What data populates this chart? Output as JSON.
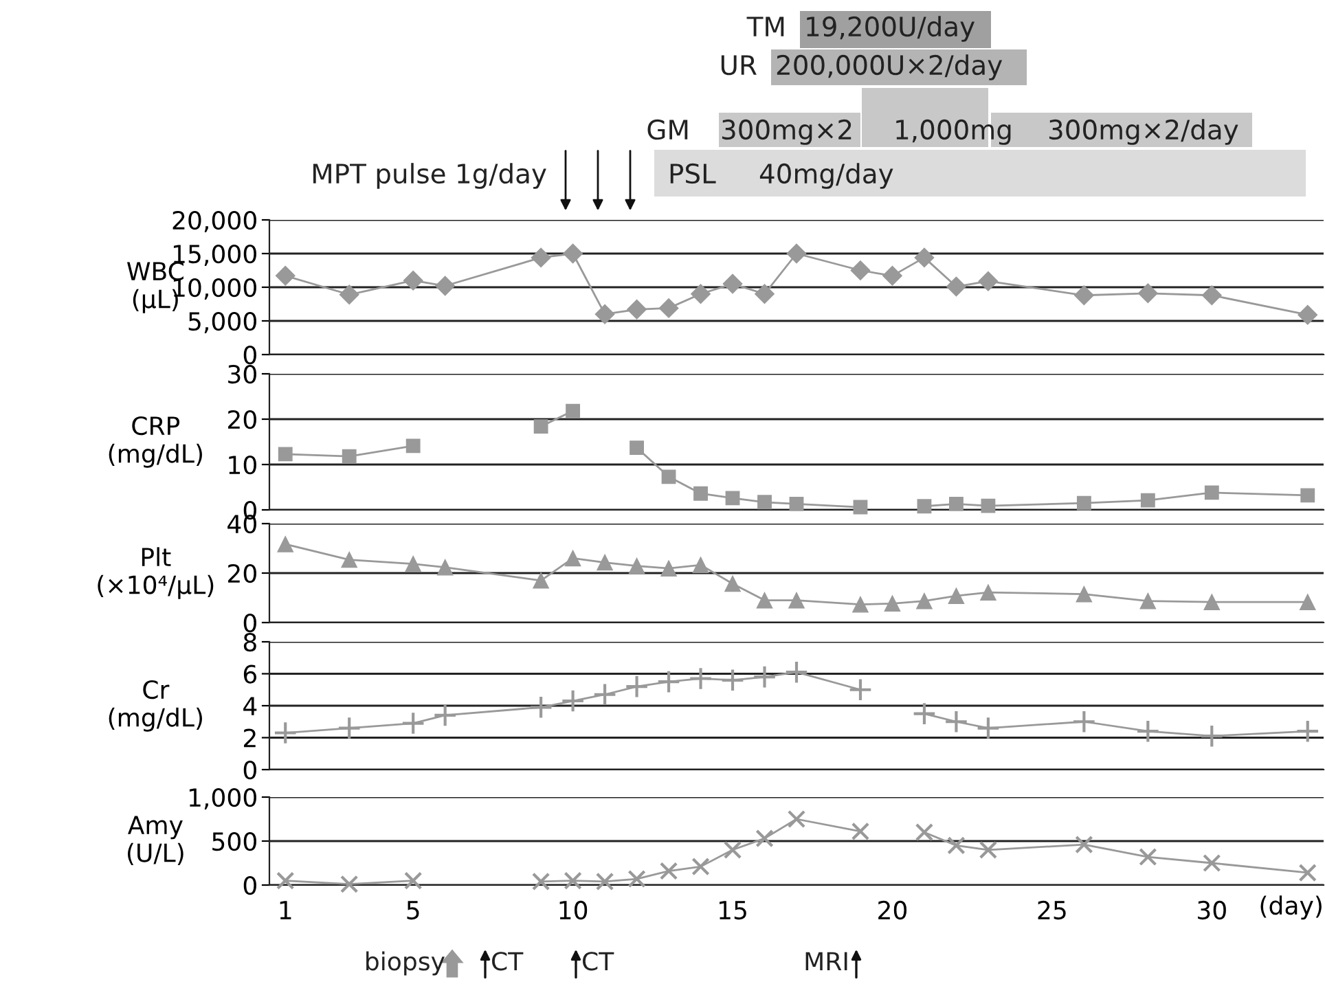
{
  "chart_data": [
    {
      "type": "other",
      "annotations": [
        "TM",
        "19,200U/day",
        "UR",
        "200,000U×2/day",
        "GM",
        "300mg×2",
        "1,000mg",
        "300mg×2/day",
        "MPT pulse 1g/day",
        "PSL",
        "40mg/day"
      ]
    },
    {
      "type": "line",
      "ylabel": "WBC\n(μL)",
      "x": [
        1,
        3,
        5,
        6,
        9,
        10,
        11,
        12,
        13,
        14,
        15,
        16,
        17,
        19,
        20,
        21,
        22,
        23,
        26,
        28,
        30,
        33
      ],
      "values": [
        11700,
        8900,
        11000,
        10200,
        14400,
        15000,
        6000,
        6700,
        6900,
        9000,
        10500,
        9000,
        15000,
        12500,
        11700,
        14400,
        10100,
        10900,
        8800,
        9100,
        8800,
        5900
      ],
      "color": "#999999",
      "marker": "diamond",
      "xlim": [
        0.5,
        33.5
      ],
      "ylim": [
        0,
        20000
      ],
      "yticks": [
        0,
        {
          "value": 5000,
          "label": "5,000"
        },
        {
          "value": 10000,
          "label": "10,000"
        },
        {
          "value": 15000,
          "label": "15,000"
        },
        {
          "value": 20000,
          "label": "20,000"
        }
      ],
      "grid": "y",
      "tick_labels": "y"
    },
    {
      "type": "line",
      "ylabel": "CRP\n(mg/dL)",
      "x": [
        1,
        3,
        5,
        6,
        9,
        10,
        11,
        12,
        13,
        14,
        15,
        16,
        17,
        19,
        20,
        21,
        22,
        23,
        26,
        28,
        30,
        33
      ],
      "values": [
        12.3,
        11.8,
        14.1,
        null,
        18.4,
        21.8,
        null,
        13.7,
        7.3,
        3.6,
        2.6,
        1.7,
        1.3,
        0.6,
        null,
        0.8,
        1.3,
        0.9,
        1.5,
        2.1,
        3.8,
        3.2
      ],
      "color": "#999999",
      "marker": "square",
      "xlim": [
        0.5,
        33.5
      ],
      "ylim": [
        0,
        30
      ],
      "yticks": [
        0,
        10,
        20,
        30
      ],
      "grid": "y",
      "tick_labels": "y"
    },
    {
      "type": "line",
      "ylabel": "Plt\n(×10⁴/μL)",
      "x": [
        1,
        3,
        5,
        6,
        9,
        10,
        11,
        12,
        13,
        14,
        15,
        16,
        17,
        19,
        20,
        21,
        22,
        23,
        26,
        28,
        30,
        33
      ],
      "values": [
        31.7,
        25.4,
        23.7,
        22.3,
        17,
        26,
        24.3,
        22.9,
        21.9,
        23.3,
        15.7,
        9,
        9,
        7.3,
        7.7,
        8.7,
        10.8,
        12.2,
        11.5,
        8.7,
        8.3,
        8.3
      ],
      "color": "#999999",
      "marker": "triangle",
      "xlim": [
        0.5,
        33.5
      ],
      "ylim": [
        0,
        40
      ],
      "yticks": [
        0,
        20,
        40
      ],
      "grid": "y",
      "tick_labels": "y"
    },
    {
      "type": "line",
      "ylabel": "Cr\n(mg/dL)",
      "x": [
        1,
        3,
        5,
        6,
        9,
        10,
        11,
        12,
        13,
        14,
        15,
        16,
        17,
        19,
        20,
        21,
        22,
        23,
        26,
        28,
        30,
        33
      ],
      "values": [
        2.3,
        2.6,
        2.9,
        3.4,
        3.9,
        4.3,
        4.7,
        5.2,
        5.5,
        5.7,
        5.6,
        5.8,
        6.1,
        5.0,
        null,
        3.5,
        3.0,
        2.6,
        3.0,
        2.4,
        2.1,
        2.4
      ],
      "color": "#999999",
      "marker": "cross",
      "xlim": [
        0.5,
        33.5
      ],
      "ylim": [
        0,
        8
      ],
      "yticks": [
        0,
        2,
        4,
        6,
        8
      ],
      "grid": "y",
      "tick_labels": "y"
    },
    {
      "type": "line",
      "ylabel": "Amy\n(U/L)",
      "xlabel": "(day)",
      "x": [
        1,
        3,
        5,
        6,
        9,
        10,
        11,
        12,
        13,
        14,
        15,
        16,
        17,
        19,
        20,
        21,
        22,
        23,
        26,
        28,
        30,
        33
      ],
      "values": [
        50,
        10,
        50,
        null,
        40,
        50,
        40,
        70,
        160,
        210,
        400,
        530,
        750,
        610,
        null,
        600,
        450,
        400,
        460,
        320,
        250,
        140
      ],
      "color": "#999999",
      "marker": "x",
      "xlim": [
        0.5,
        33.5
      ],
      "ylim": [
        0,
        1000
      ],
      "yticks": [
        0,
        500,
        {
          "value": 1000,
          "label": "1,000"
        }
      ],
      "xticks": [
        1,
        5,
        10,
        15,
        20,
        25,
        30
      ],
      "grid": "y",
      "annotations": [
        "biopsy",
        "CT",
        "CT",
        "MRI"
      ]
    }
  ]
}
